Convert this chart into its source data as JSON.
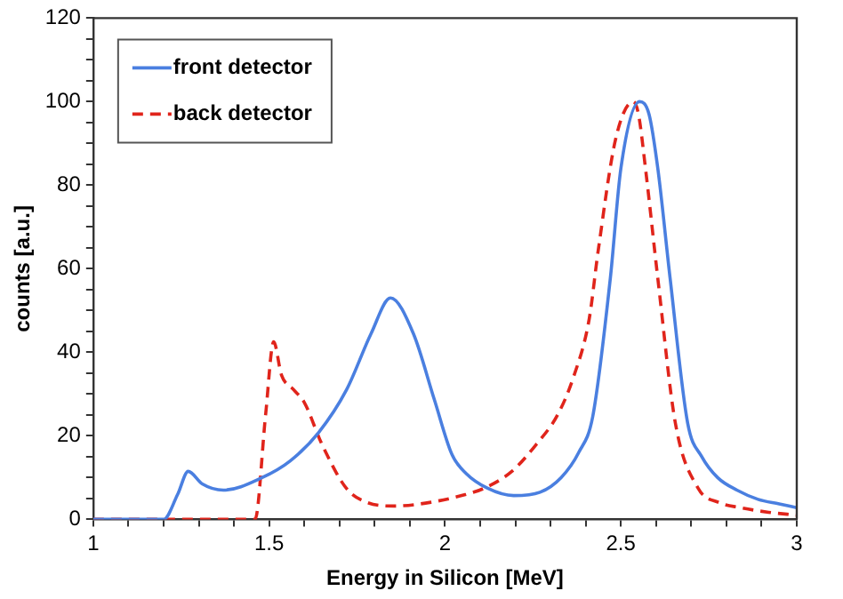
{
  "chart_data": {
    "type": "line",
    "xlabel": "Energy in Silicon [MeV]",
    "ylabel": "counts [a.u.]",
    "xlim": [
      1,
      3
    ],
    "ylim": [
      0,
      120
    ],
    "xticks": [
      1,
      {
        "value": 1.1,
        "label": null
      },
      {
        "value": 1.2,
        "label": null
      },
      {
        "value": 1.3,
        "label": null
      },
      {
        "value": 1.4,
        "label": null
      },
      1.5,
      {
        "value": 1.6,
        "label": null
      },
      {
        "value": 1.7,
        "label": null
      },
      {
        "value": 1.8,
        "label": null
      },
      {
        "value": 1.9,
        "label": null
      },
      2,
      {
        "value": 2.1,
        "label": null
      },
      {
        "value": 2.2,
        "label": null
      },
      {
        "value": 2.3,
        "label": null
      },
      {
        "value": 2.4,
        "label": null
      },
      2.5,
      {
        "value": 2.6,
        "label": null
      },
      {
        "value": 2.7,
        "label": null
      },
      {
        "value": 2.8,
        "label": null
      },
      {
        "value": 2.9,
        "label": null
      },
      3
    ],
    "yticks": [
      0,
      {
        "value": 5,
        "label": null
      },
      {
        "value": 10,
        "label": null
      },
      {
        "value": 15,
        "label": null
      },
      20,
      {
        "value": 25,
        "label": null
      },
      {
        "value": 30,
        "label": null
      },
      {
        "value": 35,
        "label": null
      },
      40,
      {
        "value": 45,
        "label": null
      },
      {
        "value": 50,
        "label": null
      },
      {
        "value": 55,
        "label": null
      },
      60,
      {
        "value": 65,
        "label": null
      },
      {
        "value": 70,
        "label": null
      },
      {
        "value": 75,
        "label": null
      },
      80,
      {
        "value": 85,
        "label": null
      },
      {
        "value": 90,
        "label": null
      },
      {
        "value": 95,
        "label": null
      },
      100,
      {
        "value": 105,
        "label": null
      },
      {
        "value": 110,
        "label": null
      },
      {
        "value": 115,
        "label": null
      },
      120
    ],
    "grid": false,
    "legend": "top left",
    "marker": "none",
    "series": [
      {
        "name": "front detector",
        "color": "#4a7fe0",
        "line_style": "solid",
        "x": [
          1,
          1.2,
          1.24,
          1.27,
          1.31,
          1.37,
          1.48,
          1.56,
          1.64,
          1.72,
          1.79,
          1.845,
          1.91,
          1.97,
          2.02,
          2.06,
          2.12,
          2.195,
          2.27,
          2.33,
          2.38,
          2.42,
          2.47,
          2.5,
          2.553,
          2.58,
          2.605,
          2.64,
          2.69,
          2.73,
          2.775,
          2.83,
          2.89,
          2.95,
          3
        ],
        "values": [
          0,
          0,
          6,
          11.5,
          8.5,
          7,
          10,
          14,
          20.7,
          31,
          44.5,
          53,
          44.5,
          28.6,
          15.5,
          11,
          7.5,
          5.7,
          6.5,
          10,
          16,
          24.6,
          57.7,
          84,
          100,
          97,
          84,
          57.7,
          23,
          15,
          10,
          7,
          4.8,
          3.7,
          2.8
        ]
      },
      {
        "name": "back detector",
        "color": "#e0241b",
        "line_style": "dashed",
        "x": [
          1,
          1.46,
          1.49,
          1.513,
          1.535,
          1.57,
          1.6,
          1.65,
          1.72,
          1.78,
          1.855,
          1.96,
          2.06,
          2.11,
          2.19,
          2.26,
          2.32,
          2.365,
          2.41,
          2.435,
          2.485,
          2.535,
          2.55,
          2.57,
          2.605,
          2.655,
          2.72,
          2.78,
          2.84,
          2.92,
          3
        ],
        "values": [
          0,
          0,
          25,
          42.5,
          34.6,
          31,
          28,
          18,
          7.4,
          4,
          3.2,
          4.1,
          6,
          7.4,
          11.5,
          18,
          25,
          34,
          48,
          64,
          91,
          100,
          97,
          84,
          57.7,
          23,
          7.4,
          4,
          2.8,
          1.7,
          1
        ]
      }
    ]
  }
}
